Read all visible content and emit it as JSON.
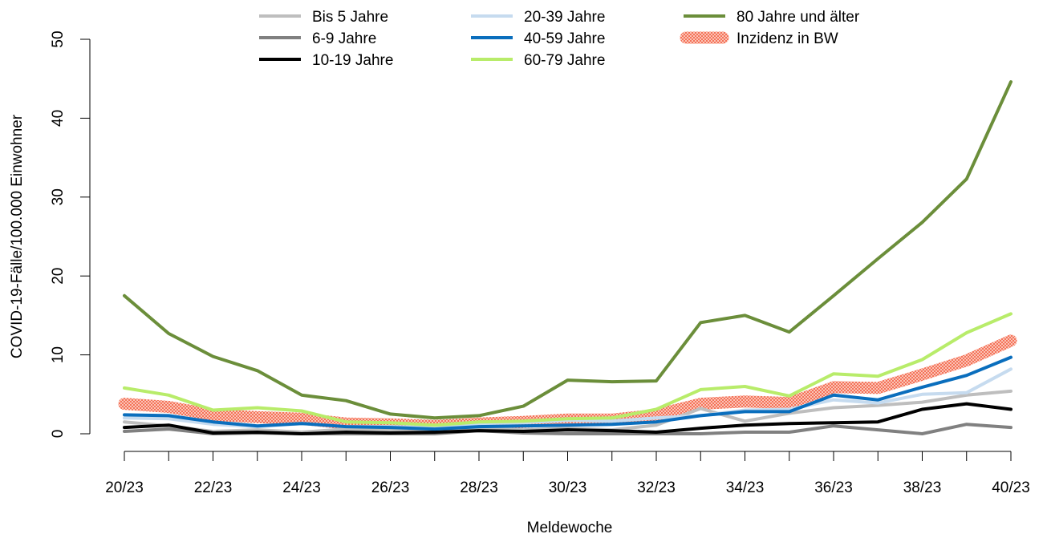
{
  "chart_data": {
    "type": "line",
    "title": "",
    "xlabel": "Meldewoche",
    "ylabel": "COVID-19-Fälle/100.000 Einwohner",
    "ylim": [
      0,
      50
    ],
    "yticks": [
      0,
      10,
      20,
      30,
      40,
      50
    ],
    "grid": false,
    "legend_position": "top",
    "categories": [
      "20/23",
      "21/23",
      "22/23",
      "23/23",
      "24/23",
      "25/23",
      "26/23",
      "27/23",
      "28/23",
      "29/23",
      "30/23",
      "31/23",
      "32/23",
      "33/23",
      "34/23",
      "35/23",
      "36/23",
      "37/23",
      "38/23",
      "39/23",
      "40/23"
    ],
    "tick_labels": [
      "20/23",
      "22/23",
      "24/23",
      "26/23",
      "28/23",
      "30/23",
      "32/23",
      "34/23",
      "36/23",
      "38/23",
      "40/23"
    ],
    "series": [
      {
        "name": "Bis 5 Jahre",
        "color": "#bebebe",
        "values": [
          1.5,
          1.0,
          0.3,
          0.5,
          0.2,
          0.6,
          0.5,
          0.2,
          0.7,
          0.5,
          0.7,
          0.5,
          1.1,
          3.2,
          1.6,
          2.6,
          3.3,
          3.6,
          4.0,
          4.9,
          5.4
        ]
      },
      {
        "name": "6-9 Jahre",
        "color": "#808080",
        "values": [
          0.3,
          0.6,
          0.0,
          0.1,
          0.0,
          0.0,
          0.0,
          0.0,
          0.4,
          0.1,
          0.0,
          0.0,
          0.0,
          0.0,
          0.2,
          0.2,
          1.0,
          0.5,
          0.0,
          1.2,
          0.8
        ]
      },
      {
        "name": "10-19 Jahre",
        "color": "#000000",
        "values": [
          0.8,
          1.1,
          0.1,
          0.2,
          0.0,
          0.2,
          0.1,
          0.2,
          0.4,
          0.3,
          0.5,
          0.4,
          0.2,
          0.7,
          1.1,
          1.3,
          1.4,
          1.5,
          3.1,
          3.8,
          3.1
        ]
      },
      {
        "name": "20-39 Jahre",
        "color": "#c6dbef",
        "values": [
          2.0,
          1.9,
          1.2,
          0.9,
          1.3,
          0.9,
          0.9,
          0.8,
          1.3,
          1.4,
          1.7,
          1.6,
          2.0,
          2.3,
          3.0,
          3.1,
          4.3,
          3.9,
          5.0,
          5.2,
          8.2
        ]
      },
      {
        "name": "40-59 Jahre",
        "color": "#0a6ebd",
        "values": [
          2.4,
          2.3,
          1.5,
          1.0,
          1.3,
          0.9,
          0.8,
          0.6,
          0.9,
          1.0,
          1.1,
          1.2,
          1.5,
          2.3,
          2.8,
          2.8,
          4.9,
          4.3,
          5.9,
          7.4,
          9.7
        ]
      },
      {
        "name": "60-79 Jahre",
        "color": "#b8ec6a",
        "values": [
          5.8,
          4.9,
          3.0,
          3.3,
          2.9,
          1.5,
          1.4,
          1.1,
          1.5,
          1.6,
          1.9,
          2.0,
          3.1,
          5.6,
          6.0,
          4.8,
          7.6,
          7.3,
          9.4,
          12.8,
          15.2
        ]
      },
      {
        "name": "80 Jahre und älter",
        "color": "#6b8e3a",
        "values": [
          17.5,
          12.7,
          9.8,
          8.0,
          4.9,
          4.2,
          2.5,
          2.0,
          2.3,
          3.5,
          6.8,
          6.6,
          6.7,
          14.1,
          15.0,
          12.9,
          17.5,
          22.2,
          26.8,
          32.3,
          44.6
        ]
      },
      {
        "name": "Inzidenz in BW",
        "color": "#f4735a",
        "values": [
          3.8,
          3.4,
          2.4,
          2.1,
          1.9,
          1.3,
          1.2,
          1.0,
          1.3,
          1.5,
          1.8,
          1.8,
          2.4,
          3.8,
          4.1,
          3.9,
          5.9,
          5.8,
          7.5,
          9.3,
          11.8
        ]
      }
    ]
  }
}
